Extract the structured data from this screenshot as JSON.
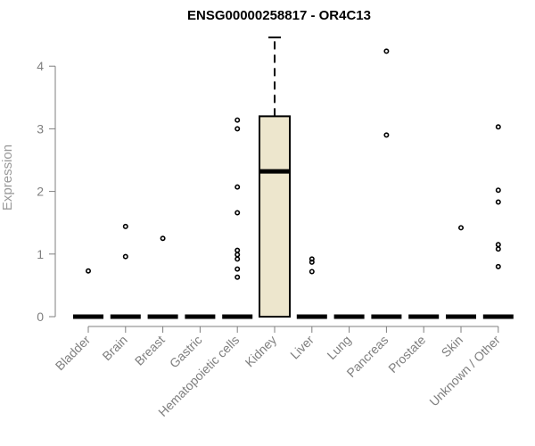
{
  "chart_data": {
    "type": "boxplot",
    "title": "ENSG00000258817 - OR4C13",
    "xlabel": "",
    "ylabel": "Expression",
    "ylim": [
      0,
      4.4
    ],
    "yticks": [
      0,
      1,
      2,
      3,
      4
    ],
    "grid": false,
    "legend": "none",
    "colors": {
      "box_fill": "#ede6cd",
      "box_stroke": "#000000",
      "axis": "#7f7f7f",
      "title": "#000000"
    },
    "categories": [
      "Bladder",
      "Brain",
      "Breast",
      "Gastric",
      "Hematopoietic cells",
      "Kidney",
      "Liver",
      "Lung",
      "Pancreas",
      "Prostate",
      "Skin",
      "Unknown / Other"
    ],
    "boxes": [
      {
        "q1": 0,
        "median": 0,
        "q3": 0,
        "whisker_low": 0,
        "whisker_high": 0,
        "outliers": [
          0.73
        ]
      },
      {
        "q1": 0,
        "median": 0,
        "q3": 0,
        "whisker_low": 0,
        "whisker_high": 0,
        "outliers": [
          0.96,
          1.44
        ]
      },
      {
        "q1": 0,
        "median": 0,
        "q3": 0,
        "whisker_low": 0,
        "whisker_high": 0,
        "outliers": [
          1.25
        ]
      },
      {
        "q1": 0,
        "median": 0,
        "q3": 0,
        "whisker_low": 0,
        "whisker_high": 0,
        "outliers": []
      },
      {
        "q1": 0,
        "median": 0,
        "q3": 0,
        "whisker_low": 0,
        "whisker_high": 0,
        "outliers": [
          0.63,
          0.76,
          0.92,
          0.99,
          1.06,
          1.66,
          2.07,
          3.0,
          3.14
        ]
      },
      {
        "q1": 0,
        "median": 2.32,
        "q3": 3.2,
        "whisker_low": 0,
        "whisker_high": 4.46,
        "outliers": []
      },
      {
        "q1": 0,
        "median": 0,
        "q3": 0,
        "whisker_low": 0,
        "whisker_high": 0,
        "outliers": [
          0.72,
          0.87,
          0.92
        ]
      },
      {
        "q1": 0,
        "median": 0,
        "q3": 0,
        "whisker_low": 0,
        "whisker_high": 0,
        "outliers": []
      },
      {
        "q1": 0,
        "median": 0,
        "q3": 0,
        "whisker_low": 0,
        "whisker_high": 0,
        "outliers": [
          2.9,
          4.24
        ]
      },
      {
        "q1": 0,
        "median": 0,
        "q3": 0,
        "whisker_low": 0,
        "whisker_high": 0,
        "outliers": []
      },
      {
        "q1": 0,
        "median": 0,
        "q3": 0,
        "whisker_low": 0,
        "whisker_high": 0,
        "outliers": [
          1.42
        ]
      },
      {
        "q1": 0,
        "median": 0,
        "q3": 0,
        "whisker_low": 0,
        "whisker_high": 0,
        "outliers": [
          0.8,
          1.08,
          1.15,
          1.83,
          2.02,
          3.03
        ]
      }
    ]
  }
}
